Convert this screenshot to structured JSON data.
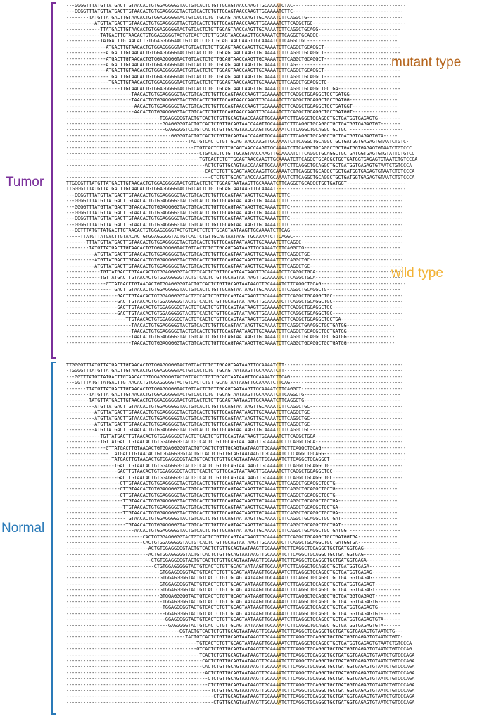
{
  "colors": {
    "tumor": "#7a2f9a",
    "normal": "#2a7ab8",
    "mutant_text": "#b5651d",
    "wild_text": "#f2b234",
    "mutant_highlight": "#f3c79a",
    "wild_highlight": "#fde08a"
  },
  "labels": {
    "tumor": "Tumor",
    "normal": "Normal",
    "mutant": "mutant type",
    "wild": "wild type"
  },
  "groups": {
    "tumor_mutant": [
      "---GGGGTTTATGTTATGACTTGTAACACTGTGGAGGGGGTACTGTCACTCTGTTGCAGTAACCAAGTTGCAAAATCTAC----------------------------------------",
      "---GGGGTTTATGTTATGACTTGTAACACTGTGGAGGGGGTACTGTCACTCTGTTGCAGTAACCAAGTTGCAAAATCTTC---------------------------------------",
      "--------TATGTTATGACTTGTAACACTGTGGAGGGGGTACTGTCACTCTGTTGCAGTAACCAAGTTGCAAAATCTTCAGGCTG----------------------------------",
      "----------ATGTTATGACTTGTAACACTGTGGAGGGGTTACTGTCACTCTGTTGCAGTAACCAAGTTGCAAAATCTTCAGGCTGC---------------------------------",
      "------------TTATGACTTGTAACACTGTGGAGGGGGTACTGTCACTCTGTTGCAGTAACCAAGTTGCAAAATCTTCAGGCTGCAGG-----------------------------",
      "------------TATGACTTGTAACACTGTGGAGGGGGTACTGTCACTCTGTTGCAGTAACCAAGTTGCAAAATCTTCAGGCTGCAGGC----------------------------",
      "------------TATGACTTGTAACACTGTGGAGGGGGAACTGTCACTCTGTTGCAGTAACCAAGTTGCAAAATCTTCAGGCTGC--------------------------------",
      "--------------ATGACTTGTAACACTGTGGAGGGGGTACTGTCACTCTGTTGCAGTAACCAAGTTGCAAAATCTTCAGGCTGCAGGCT---------------------------",
      "--------------ATGACTTGTAACACTGTGGAGGGGGTACTGTCACTCTGTTGCAGTAACCAAGTTGCAAAATCTTCAGGCTGCAGGCT---------------------------",
      "--------------ATGACTTGTAACACTGTGGAGGGGGTACTGTCACTCTGTTGCAGTAACCAAGTTGCAAAATCTTCAGGCTGCAGGCT---------------------------",
      "--------------ATGACTTGTAACACTGTGGAGGGGGTACTGTCACTCTGTTGCAGTAACCAAGTTGCAAAATCTTCAG----------------------------------",
      "--------------ATGACTTGTAACACTGTGGAGGGGGTACTGTCACTCTGTTGCAGTAACCAAGTTGCAAAATCTTCAGGCTGCAGGCT---------------------------",
      "---------------TGACTTGTAACACTGTGGAGGGGGTACTGTCACTCTGTTGCAGTAACCAAGTTGCAAAATCTTCAGGCTGCAGGCT---------------------------",
      "---------------TGACTTGTAACACTGTGGAGGGGGTACTGTCACTCTGTTGCAGTAACCAAGTTGCAAAATCTTCAGGCTGCAGGCTG--------------------------",
      "-------------------TTGTAACACTGTGGAGGGGGTACTGTCACTCTGTTGCAGTAACCAAGTTGCAAAATCTTCAGGCTGCAGGCTGCTGA----------------------",
      "-----------------------TAACACTGTGGAGGGGGTACTGTCACTCTGTTGCAGTAACCAAGTTGCAAAATCTTCAGGCTGCAGGCTGCTGATGG-----------------",
      "-----------------------TAACACTGTGGAGGGGGTACTGTCACTCTGTTGCAGTAACCAAGTTGCAAAATCTTCAGGCTGCAGGCTGCTGATGG-----------------",
      "------------------------AACACTGTGGAGGGGGTACTGTCACTCTGTTGCAGTAACCAAGTTGCAAAATCTTCAGGCTGCAGGCTGCTGATGGT----------------",
      "------------------------AACACTGTGGAGGGGGTACTGTCACTCTGTTGCAGTAACCAAGTTGCAAAATCTTCAGGCTGCAGGCTGCTGATGGT----------------",
      "---------------------------------TGGAGGGGGTACTGTCACTCTGTTGCAGTAACCAAGTTGCAAAATCTTCAGGCTGCAGGCTGCTGATGGTGAGAGTG--------",
      "----------------------------------GGAGGGGGTACTGTCACTCTGTTGCAGTAACCAAGTTGCAAAATCTTCAGGCTGCAGGCTGCTGATGGTGAGAGTGT-------",
      "-----------------------------------GAGGGGGTCCTGTCACTCTGTTGCAGTAACCAAGTTGCAAAATCTTCAGGCTGCAGGCTGCTGCT-------------------",
      "-------------------------------------GGGGGTACTGTCACTCTGTTGCAGTAACCAAGTTGCAAAATCTTCAGGCTGCAGGCTGCTGATGGTGAGAGTGTA-----",
      "-------------------------------------------TACTGTCACTCTGTTGCAGTAACCAAGTTGCAAAATCTTCAGGCTGCAGGCTGCTGATGGTGAGAGTGTAATCTGTC-",
      "---------------------------------------------CTGTCACTCTGTTGCAGTAACCAAGTTGCAAAATCTTCAGGCTGCAGGCTGCTGATGGTGAGAGTGTAATCTGTCCC",
      "-----------------------------------------------CTGACACTCTGTTGCAGTAACCAAGTTGCAAAATCTTCAGGCTGCAGGCTGCTGATGGTGAGTGTGTATTCTGTCC",
      "-----------------------------------------------TGTCACTCTGTTGCAGTAACCAAGTTGCAAAATCTTCAGGCTGCAGGCTGCTGATGGTGAGAGTGTAATCTGTCCCA",
      "-------------------------------------------------ACTCTGTTGCAGTAACCAAGTTGCAAAATCTTCAGGCTGCAGGCTGCTGATGGTGAGAGTGTAATCTGTCCCA",
      "-------------------------------------------------CACTCTGTTGCAGTAACCAAGTTGCAAAATCTTCAGGCTGCAGGCTGCTGATGGTGAGAGTGTAATCTGTCCCA",
      "---------------------------------------------------CTCTGTTGCAGTAACCAAGTTGCAAAATCTTCAGGCTGCAGGCTGCTGATGGTGAGAGTGTAATCTGTCCCA"
    ],
    "tumor_wild": [
      "TTGGGGTTTATGTTATGACTTGTAACACTGTGGAGGGGGTACTGTCACTCTGTTGCAGTAATAAGTTGCAAAATCTTCAGGCTGCAGGCTGCTGATGGT---------------------",
      "TTGGGGTTTATGTTATGACTTGTAACACTGTGGAGGGGGTACTGTCACTCTGTTGCAGTAATAAGTTGCAAAAT----------------------------------------------",
      "---GGGGTTTATGTTATGACTTGTAACACTGTGGAGGGGGTACTGTCACTCTGTTGCAGTAATAAGTTGCAAAATCTTC----------------------------------------",
      "---GGGGTTTATGTTATGACTTGTAACACTGTGGAGGGGGTACTGTCACTCTGTTGCAGTAATAAGTTGCAAAATCTTC----------------------------------------",
      "---GGGGTTTATGTTATGACTTGTAACACTGTGGAGGGGGTACTGTCACTCTGTTGCAGTAATAAGTTGCAAAATCTTC----------------------------------------",
      "---GGGGTTTATGTTATGACTTGTAACACTGTGGAGGGGGTACTGTCACTCTGTTGCAGTAATAAGTTGCAAAATCTTC----------------------------------------",
      "---GGGGTTTATGTTATGACTTGTAACACTGTGGAGGGGGTACTGTCACTCTGTTGCAGTAATAAGTTGCAAAATCTTC----------------------------------------",
      "---GGGGTTTATGTTATGACTTGTAACACTGTGGAGGGGGTACTGTCACTCTGTTGCAGTAATAAGTTGCAAAATCTTC----------------------------------------",
      "---GGTTTATGTTATGACTTGTAACACTGTGGAGGGGGTACTGTCACTCTGTTGCAGTAATAAGTTGCAAAATCTTCAG----------------------------------------",
      "-----TTATGTTATGACTTGTAACACTGTGGAGGGGGTACTGTCACTCTGTTGCAGTAATAAGTTGCAAAATCTTCAGGC---------------------------------------",
      "-------TTTATGTTATGACTTGTAACACTGTGGAGGGGGTACTGTCACTCTGTTGCAGTAATAAGTTGCAAAATCTTCAGGC------------------------------------",
      "--------TATGTTATGACTTGTAACACTGTGGAGGGGGTACTGTCACTCTGTTGCAGTAATAAGTTGCAAAATCTTCAGGCTG----------------------------------",
      "----------ATGTTATGACTTGTAACACTGTGGAGGGGGTACTGTCACTCTGTTGCAGTAATAAGTTGCAAAATCTTCAGGCTGC---------------------------------",
      "----------ATGTTATGACTTGTAACACTGTGGAGGGGGTACTGTCACTCTGTTGCAGTAATAAGTTGCAAAATCTTCAGGCTGC---------------------------------",
      "----------ATGTTATGACTTGTAACACTGTGGAGGGGGTACTGTCACTCTGTTGCAGTAATAAGTTGCAAAATCTTCAGGCTGC---------------------------------",
      "------------TGTTATGACTTGTAACACTGTGGAGGGGGTACTGTCACTCTGTTGCAGTAATAAGTTGCAAAATCTTCAGGCTGCA-------------------------------",
      "------------TGTTATGACTTGTAACACTGTGGAGGGGGTACTGTCACTCTGTTGCAGTAATAAGTTGCAAAATCTTCAGGCTGCA-------------------------------",
      "--------------GTTATGACTTGTAACACTGTGGAGGGGGTACTGTCACTCTGTTGCAGTAATAAGTTGCAAAATCTTCAGGCTGCAG------------------------------",
      "----------------TGACTTGTAACACTGTGGAGGGGGTACTGTCACTCTGTTGCAGTAATAAGTTGCAAAATCTTCAGGCTGCAGGCTG--------------------------",
      "------------------GACTTGTAACACTGTGGAGGGGGTACTGTCACTCTGTTGCAGTAATAAGTTGCAAAATCTTCAGGCTGCAGGCTGC-------------------------",
      "------------------GACTTGTAACACTGTGGAGGGGGTACTGTCACTCTGTTGCAGTAATAAGTTGCAAAATCTTCAGGCTGCAGGCTGC-------------------------",
      "------------------GACTTGTAACACTGTGGAGGGGGTACTGTCACTCTGTTGCAGTAATAAGTTGCAAAATCTTCAGGCTGCAGGCTGC-------------------------",
      "------------------GACTTGTAACACTGTGGAGGGGGTACTGTCACTCTGTTGCAGTAATAAGTTGCAAAATCTTCAGGCTGCAGGCTGC-------------------------",
      "---------------------TTGTAACACTGTGGAGGGGGTACTGTCACTCTGTTGCAGTAATAAGTTGCAAAATCTTCAGGCTGCAGGCTGCTGA----------------------",
      "-----------------------TAACACTGTGGAGGGGGTACTGTCACTCTGTTGCAGTAATAAGTTGCAAAATCTTCAGGCTGAAGGCTGCTGATGG-----------------",
      "-----------------------TAACACTGTGGAGGGGGTACTGTCACTCTGTTGCAGTAATAAGTTGCAAAATCTTCAGGCTGCAGGCTGCTGATGG-----------------",
      "-----------------------TAACACTGTGGAGGGGGTACTGTCACTCTGTTGCAGTAATAAGTTGCAAAATCTTCAGGCTGCAGGCTGCTGATGG-----------------",
      "-----------------------TAACACTGTGGAGGGGGTACTGTCACTCTGTTGCAGTAATAAGTTGCAAAATCTTCAGGCTGCAGGCTGCTGATGG-----------------"
    ],
    "normal_wild": [
      "TTGGGGTTTATGTTATGACTTGTAACACTGTGGAGGGGGTACTGTCACTCTGTTGCAGTAATAAGTTGCAAAATCTT------------------------------------------",
      "-TGGGGTTTATGTTATGACTTGTAACACTGTGGAGGGGGTACTGTCACTCTGTTGCAGTAATAAGTTGCAAAATCTT------------------------------------------",
      "---GGTTTATGTTATGACTTGTAACACTGTGGAGGGGGTACTGTCACTCTGTTGCAGTAATAAGTTGCAAAATCTTCAG----------------------------------------",
      "---GGTTTATGTTATGACTTGTAACACTGTGGAGGGGGTACTGTCACTCTGTTGCAGTAATAAGTTGCAAAATCTTCAG----------------------------------------",
      "-------TTATGTTATGACTTGTAACACTGTGGAGGGGGTACTGTCACTCTGTTGCAGTAATAAGTTGCAAAATCTTCAGGCT------------------------------------",
      "--------TATGTTATGACTTGTAACACTGTGGAGGGGGTACTGTCACTCTGTTGCAGTAATAAGTTGCAAAATCTTCAGGCTG----------------------------------",
      "--------TATGTTATGACTTGTAACACTGTGGAGGGGGTACTGTCACTCTGTTGCAGTAATAAGTTGCAAAATCTTCAGGCTG----------------------------------",
      "----------ATGTTATGACTTGTAACACTGTGGAGGGGGTACTGTCACTCTGTTGCAGTAATAAGTTGCAAAATCTTCAGGCTGC---------------------------------",
      "----------ATGTTATGACTTGTAACACTGTGGAGGGGGTACTGTCACTCTGTTGCAGTAATAAGTTGCAAAATCTTCAGGCTGC---------------------------------",
      "----------ATGTTATGACTTGTAACACTGTGGAGGGGGTACTGTCACTCTGTTGCAGTAATAAGTTGCAAAATCTTCAGGCTGC---------------------------------",
      "----------ATGTTATGACTTGTAACACTGTGGAGGGGGTACTGTCACTCTGTTGCAGTAATAAGTTGCAAAATCTTCAGGCTGC---------------------------------",
      "----------ATGTTATGACTTGTAACACTGTGGAGGGGGTACTGTCACTCTGTTGCAGTAATAAGTTGCAAAATCTTCAGGCTGC---------------------------------",
      "------------TGTTATGACTTGTAACACTGTGGAGGGGGTACTGTCACTCTGTTGCAGTAATAAGTTGCAAAATCTTCAGGCTGCA-------------------------------",
      "------------TGTTATGACTTGTAACACTGTGGAGGGGGTACTGTCACTCTGTTGCAGTAATAAGTTGCAAAATCTTCAGGCTGCA-------------------------------",
      "--------------GTTATGACTTGTAACACTGTGGAGGGGGTACTGTCACTCTGTTGCAGTAATAAGTTGCAAAATCTTCAGGCTGCAG------------------------------",
      "---------------TTATGACTTGTAACACTGTGGAGGGGGTACTGTCACTCTGTTGCAGTAATAAGTTGCAAAATCTTCAGGCTGCAGG-----------------------------",
      "----------------TATGACTTGTAACACTGTGGAGGGGGTACTGTCACTCTGTTGCAGTAATAAGTTGCAAAATCTTCAGGCTGCAGGCT---------------------------",
      "-----------------TGACTTGTAACACTGTGGAGGGGGTACTGTCACTCTGTTGCAGTAATAAGTTGCAAAATCTTCAGGCTGCAGGCTG--------------------------",
      "------------------GACTTGTAACACTGTGGAGGGGGTACTGTCACTCTGTTGCAGTAATAAGTTGCAAAATCTTCAGGCTGCAGGCTGC-------------------------",
      "------------------GACTTGTAACACTGTGGAGGGGGTACTGTCACTCTGTTGCAGTAATAAGTTGCAAAATCTTCAGGCTGCAGGCTGC-------------------------",
      "-------------------CTTGTAACACTGTGGAGGGGGTACTGTCACTCTGTTGCAGTAATAAGTTGCAAAATCTTCAGGCTGCAGGCTGCTG----------------------",
      "-------------------CTTGTAACACTGTGGAGGGGGTACTGTCACTCTGTTGCAGTAATAAGTTGCAAAATCTTCAGGCTGCAGGCTGCTG----------------------",
      "-------------------CTTGTAACACTGTGGAGGGGGTACTGTCACTCTGTTGCAGTAATAAGTTGCAAAATCTTCAGGCTGCAGGCTGCTG----------------------",
      "--------------------TTGTAACACTGTGGAGGGGGTACTGTCACTCTGTTGCAGTAATAAGTTGCAAAATCTTCAGGCTGCAGGCTGCTGA---------------------",
      "--------------------TTGTAACACTGTGGAGGGGGTACTGTCACTCTGTTGCAGTAATAAGTTGCAAAATCTTCAGGCTGCAGGCTGCTGA---------------------",
      "--------------------TTGTAACACTGTGGAGGGGGTACTGTCACTCTGTTGCAGTAATAAGTTGCAAAATCTTCAGGCTGCAGGCTGCTGA---------------------",
      "---------------------TGTAACACTGTGGAGGGGGTACTGTCACTCTGTTGCAGTAATAAGTTGCAAAATCTTCAGGCTGCAGGCTGCTGAT--------------------",
      "---------------------TGTAACACTGTGGAGGGGGTACTGTCACTCTGTTGCAGTAATAAGTTGCAAAATCTTCAGGCTGCAGGCTGCTGAT--------------------",
      "------------------------AACACTGTGGAGGGGGTACTGTCACTCTGTTGCAGTAATAAGTTGCAAAATCTTCAGGCTGCAGGCTGCTGATGGT------------------",
      "---------------------------CACTGTGGAGGGGGTACTGTCACTCTGTTGCAGTAATAAGTTGCAAAATCTTCAGGCTGCAGGCTGCTGATGGTGA--------------",
      "---------------------------CACTGTGGAGGGGGTACTGTCACTCTGTTGCAGTAATAAGTTGCAAAATCTTCAGGCTGCAGGCTGCTGATGGTGA--------------",
      "-----------------------------ACTGTGGAGGGGGTACTGTCACTCTGTTGCAGTAATAAGTTGCAAAATCTTCAGGCTGCAGGCTGCTGATGGTGAG-------------",
      "-----------------------------ACTGTGGAGGGGGTACTGTCACTCTGTTGCAGTAATAAGTTGCAAAATCTTCAGGCTGCAGGCTGCTGATGGTGAG-------------",
      "------------------------------CTGTGGAGGGGGTACTGTCACTCTGTTGCAGTAATAAGTTGCAAAATCTTCAGGCTGCAGGCTGCTGATGGTGAGA------------",
      "-------------------------------CTGTGGAGGGGGTACTGTCACTCTGTTGCAGTAATAAGTTGCAAAATCTTCAGGCTGCAGGCTGCTGATGGTGAGA-----------",
      "---------------------------------GTGGAGGGGGTACTGTCACTCTGTTGCAGTAATAAGTTGCAAAATCTTCAGGCTGCAGGCTGCTGATGGTGAGAG----------",
      "---------------------------------GTGGAGGGGGTACTGTCACTCTGTTGCAGTAATAAGTTGCAAAATCTTCAGGCTGCAGGCTGCTGATGGTGAGAG----------",
      "---------------------------------GTGGAGGGGGTACTGTCACTCTGTTGCAGTAATAAGTTGCAAAATCTTCAGGCTGCAGGCTGCTGATGGTGAGAGT---------",
      "---------------------------------GTGGAGGGGGTACTGTCACTCTGTTGCAGTAATAAGTTGCAAAATCTTCAGGCTGCAGGCTGCTGATGGTGAGAGT---------",
      "---------------------------------GTGGAGGGGGTACTGTCACTCTGTTGCAGTAATAAGTTGCAAAATCTTCAGGCTGCAGGCTGCTGATGGTGAGAGT---------",
      "----------------------------------TGGAGGGGGTACTGTCACTCTGTTGCAGTAATAAGTTGCAAAATCTTCAGGCTGCAGGCTGCTGATGGTGAGAGTG--------",
      "----------------------------------TGGAGGGGGTACTGTCACTCTGTTGCAGTAATAAGTTGCAAAATCTTCAGGCTGCAGGCTGCTGATGGTGAGAGTG--------",
      "-----------------------------------GGAGGGGGTACTGTCACTCTGTTGCAGTAATAAGTTGCAAAATCTTCAGGCTGCAGGCTGCTGATGGTGAGAGTGT-------",
      "-----------------------------------GGAGGGGGTACTGTCACTCTGTTGCAGTAATAAGTTGCAAAATCTTCAGGCTGCAGGCTGCTGATGGTGAGAGTGTA------",
      "------------------------------------GAGGGGGTACTGTCACTCTGTTGCAGTAATAAGTTGCAAAATCTTCAGGCTGCAGGCTGCTGATGGTGAGAGTGTA------",
      "----------------------------------------GGTACTGTCACTCTGTTGCAGTAATAAGTTGCAAAATCTTCAGGCTGCAGGCTGCTGATGGTGAGAGTGTAATCTG---",
      "------------------------------------------TACTGTCACTCTGTTGCAGTAATAAGTTGCAAAATCTTCAGGCTGCAGGCTGCTGATGGTGAGAGTGTAATCTGTC-",
      "----------------------------------------------TGTCACTCTGTTGCAGTAATAAGTTGCAAAATCTTCAGGCTGCAGGCTGCTGATGGTGAGAGTGTAATCTGTCCCA",
      "----------------------------------------------GTCACTCTGTTGCAGTAATAAGTTGCAAAATCTTCAGGCTGCAGGCTGCTGATGGTGAGAGTGTAATCTGTCCCAG",
      "-----------------------------------------------TCACTCTGTTGCAGTAATAAGTTGCAAAATCTTCAGGCTGCAGGCTGCTGATGGTGAGAGTGTAATCTGTCCCAGA",
      "------------------------------------------------CACTCTGTTGCAGTAATAAGTTGCAAAATCTTCAGGCTGCAGGCTGCTGATGGTGAGAGTGTAATCTGTCCCAGA",
      "------------------------------------------------CACTCTGTTGCAGTAATAAGTTGCAAAATCTTCAGGCTGCAGGCTGCTGATGGTGAGAGTGTAATCTGTCCCAGA",
      "-------------------------------------------------ACTCTGTTGCAGTAATAAGTTGCAAAATCTTCAGGCTGCAGGCTGCTGATGGTGAGAGTGTAATCTGTCCCAGA",
      "--------------------------------------------------CTCTGTTGCAGTAATAAGTTGCAAAATCTTCAGGCTGCAGGCTGCTGATGGTGAGAGTGTAATCTGTCCCAGA",
      "--------------------------------------------------CTCTGTTGCAGTAATAAGTTGCAAAATCTTCAGGCTGCAGGCTGCTGATGGTGAGAGTGTAATCTGTCCCAGA",
      "---------------------------------------------------TCTGTTGCAGTAATAAGTTGCAAAATCTTCAGGCTGCAGGCTGCTGATGGTGAGAGTGTAATCTGTCCCAGA",
      "----------------------------------------------------CTGTTGCAGTAATAAGTTGCAAAATCTTCAGGCTGCAGGCTGCTGATGGTGAGAGTGTAATCTGTCCCAGA",
      "----------------------------------------------------CTGTTGCAGTAATAAGTTGCAAAATCTTCAGGCTGCAGGCTGCTGATGGTGAGAGTGTAATCTGTCCCAGA"
    ]
  }
}
